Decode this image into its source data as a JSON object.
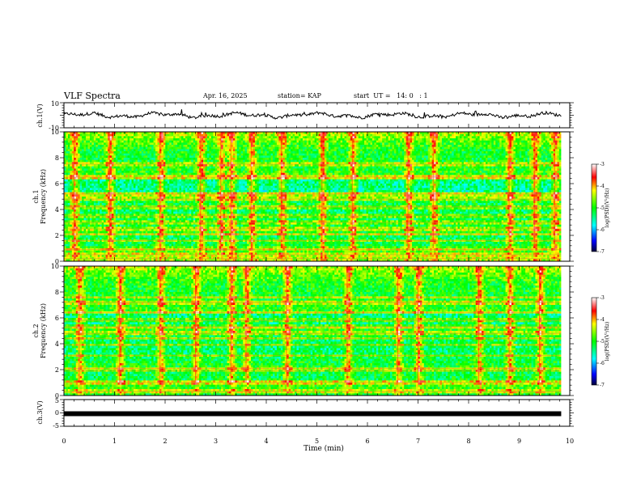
{
  "header": {
    "title": "VLF Spectra",
    "date": "Apr. 16, 2025",
    "station": "station= KAP",
    "start_ut": "start  UT =   14: 0   : 1"
  },
  "chart_data": [
    {
      "type": "line",
      "panel": "ch1-waveform",
      "ylabel": "ch.1(V)",
      "ylim": [
        -10,
        10
      ],
      "yticks": [
        "10",
        "-10"
      ],
      "xlim": [
        0,
        9.83
      ],
      "series": [
        {
          "values_description_range": [
            -3,
            4
          ]
        }
      ],
      "color": "#000000"
    },
    {
      "type": "heatmap",
      "panel": "ch1-spectrogram",
      "ylabel_line1": "ch.1",
      "ylabel_line2": "Frequency  (kHz)",
      "ylim": [
        0,
        10
      ],
      "yticks": [
        "0",
        "2",
        "4",
        "6",
        "8",
        "10"
      ],
      "xlim": [
        0,
        9.83
      ],
      "colorbar": {
        "label": "log(PSD)(V²/Hz)",
        "range": [
          -7,
          -3
        ],
        "ticks": [
          "-3",
          "-4",
          "-5",
          "-6",
          "-7"
        ]
      },
      "bands_kHz": [
        0.2,
        0.5,
        0.9,
        1.6,
        2.1,
        2.5,
        3.0,
        3.5,
        4.2,
        4.8,
        5.2,
        6.5,
        7.5
      ],
      "high_activity_min": [
        0.2,
        0.9,
        1.9,
        2.7,
        3.1,
        3.3,
        3.7,
        4.3,
        5.1,
        5.7,
        6.8,
        7.3,
        8.8,
        9.3,
        9.7
      ]
    },
    {
      "type": "heatmap",
      "panel": "ch2-spectrogram",
      "ylabel_line1": "ch.2",
      "ylabel_line2": "Frequency  (kHz)",
      "ylim": [
        0,
        10
      ],
      "yticks": [
        "0",
        "2",
        "4",
        "6",
        "8",
        "10"
      ],
      "xlim": [
        0,
        9.83
      ],
      "colorbar": {
        "label": "log(PSD)(V²/Hz)",
        "range": [
          -7,
          -3
        ],
        "ticks": [
          "-3",
          "-4",
          "-5",
          "-6",
          "-7"
        ]
      },
      "bands_kHz": [
        0.3,
        1.0,
        1.9,
        2.1,
        3.1,
        3.9,
        4.4,
        4.8,
        5.3,
        5.8,
        6.4,
        7.2,
        7.6
      ],
      "high_activity_min": [
        0.3,
        1.1,
        1.9,
        2.6,
        3.3,
        3.6,
        4.4,
        5.6,
        6.6,
        7.0,
        8.2,
        8.8,
        9.4
      ]
    },
    {
      "type": "line",
      "panel": "ch3-waveform",
      "ylabel": "ch.3(V)",
      "ylim": [
        -5,
        5
      ],
      "yticks": [
        "5",
        "0",
        "-5"
      ],
      "xlim": [
        0,
        9.83
      ],
      "value_approx": -0.3,
      "color": "#000000"
    }
  ],
  "x_axis": {
    "label": "Time  (min)",
    "range": [
      0,
      10
    ],
    "ticks": [
      "0",
      "1",
      "2",
      "3",
      "4",
      "5",
      "6",
      "7",
      "8",
      "9",
      "10"
    ]
  }
}
